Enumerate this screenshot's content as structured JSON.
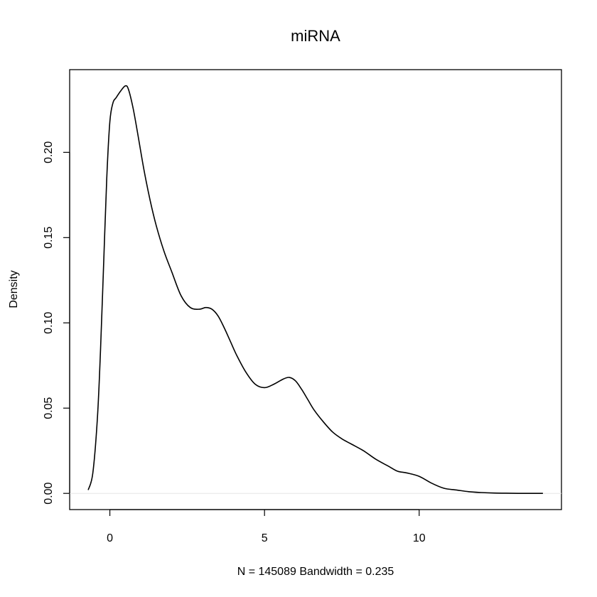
{
  "chart_data": {
    "type": "line",
    "title": "miRNA",
    "xlabel": "N = 145089   Bandwidth = 0.235",
    "ylabel": "Density",
    "xlim": [
      -1.3,
      14.6
    ],
    "ylim": [
      -0.0095,
      0.2485
    ],
    "x_ticks": [
      0,
      5,
      10
    ],
    "x_tick_labels": [
      "0",
      "5",
      "10"
    ],
    "y_ticks": [
      0,
      0.05,
      0.1,
      0.15,
      0.2
    ],
    "y_tick_labels": [
      "0.00",
      "0.05",
      "0.10",
      "0.15",
      "0.20"
    ],
    "grid": false,
    "legend": "none",
    "baseline": 0,
    "baseline_color": "#e6e6e6",
    "line_color": "#000000",
    "series": [
      {
        "x": [
          -0.7,
          -0.55,
          -0.4,
          -0.3,
          -0.2,
          -0.1,
          0.0,
          0.1,
          0.2,
          0.35,
          0.5,
          0.6,
          0.75,
          0.9,
          1.1,
          1.3,
          1.5,
          1.75,
          2.0,
          2.3,
          2.6,
          2.9,
          3.1,
          3.3,
          3.5,
          3.7,
          3.9,
          4.1,
          4.4,
          4.7,
          5.0,
          5.3,
          5.6,
          5.8,
          6.0,
          6.2,
          6.4,
          6.6,
          6.9,
          7.2,
          7.5,
          7.8,
          8.2,
          8.6,
          9.0,
          9.3,
          9.6,
          10.0,
          10.4,
          10.8,
          11.2,
          11.6,
          12.0,
          12.4,
          12.8,
          13.2,
          13.6,
          14.0
        ],
        "y": [
          0.002,
          0.012,
          0.045,
          0.085,
          0.135,
          0.185,
          0.218,
          0.229,
          0.232,
          0.236,
          0.239,
          0.237,
          0.226,
          0.211,
          0.19,
          0.172,
          0.157,
          0.142,
          0.13,
          0.116,
          0.109,
          0.108,
          0.109,
          0.108,
          0.104,
          0.097,
          0.089,
          0.081,
          0.071,
          0.064,
          0.062,
          0.064,
          0.067,
          0.068,
          0.066,
          0.061,
          0.055,
          0.049,
          0.042,
          0.036,
          0.032,
          0.029,
          0.025,
          0.02,
          0.016,
          0.013,
          0.012,
          0.01,
          0.006,
          0.003,
          0.002,
          0.001,
          0.0005,
          0.0002,
          0.0001,
          0.0,
          0.0,
          0.0
        ]
      }
    ]
  }
}
